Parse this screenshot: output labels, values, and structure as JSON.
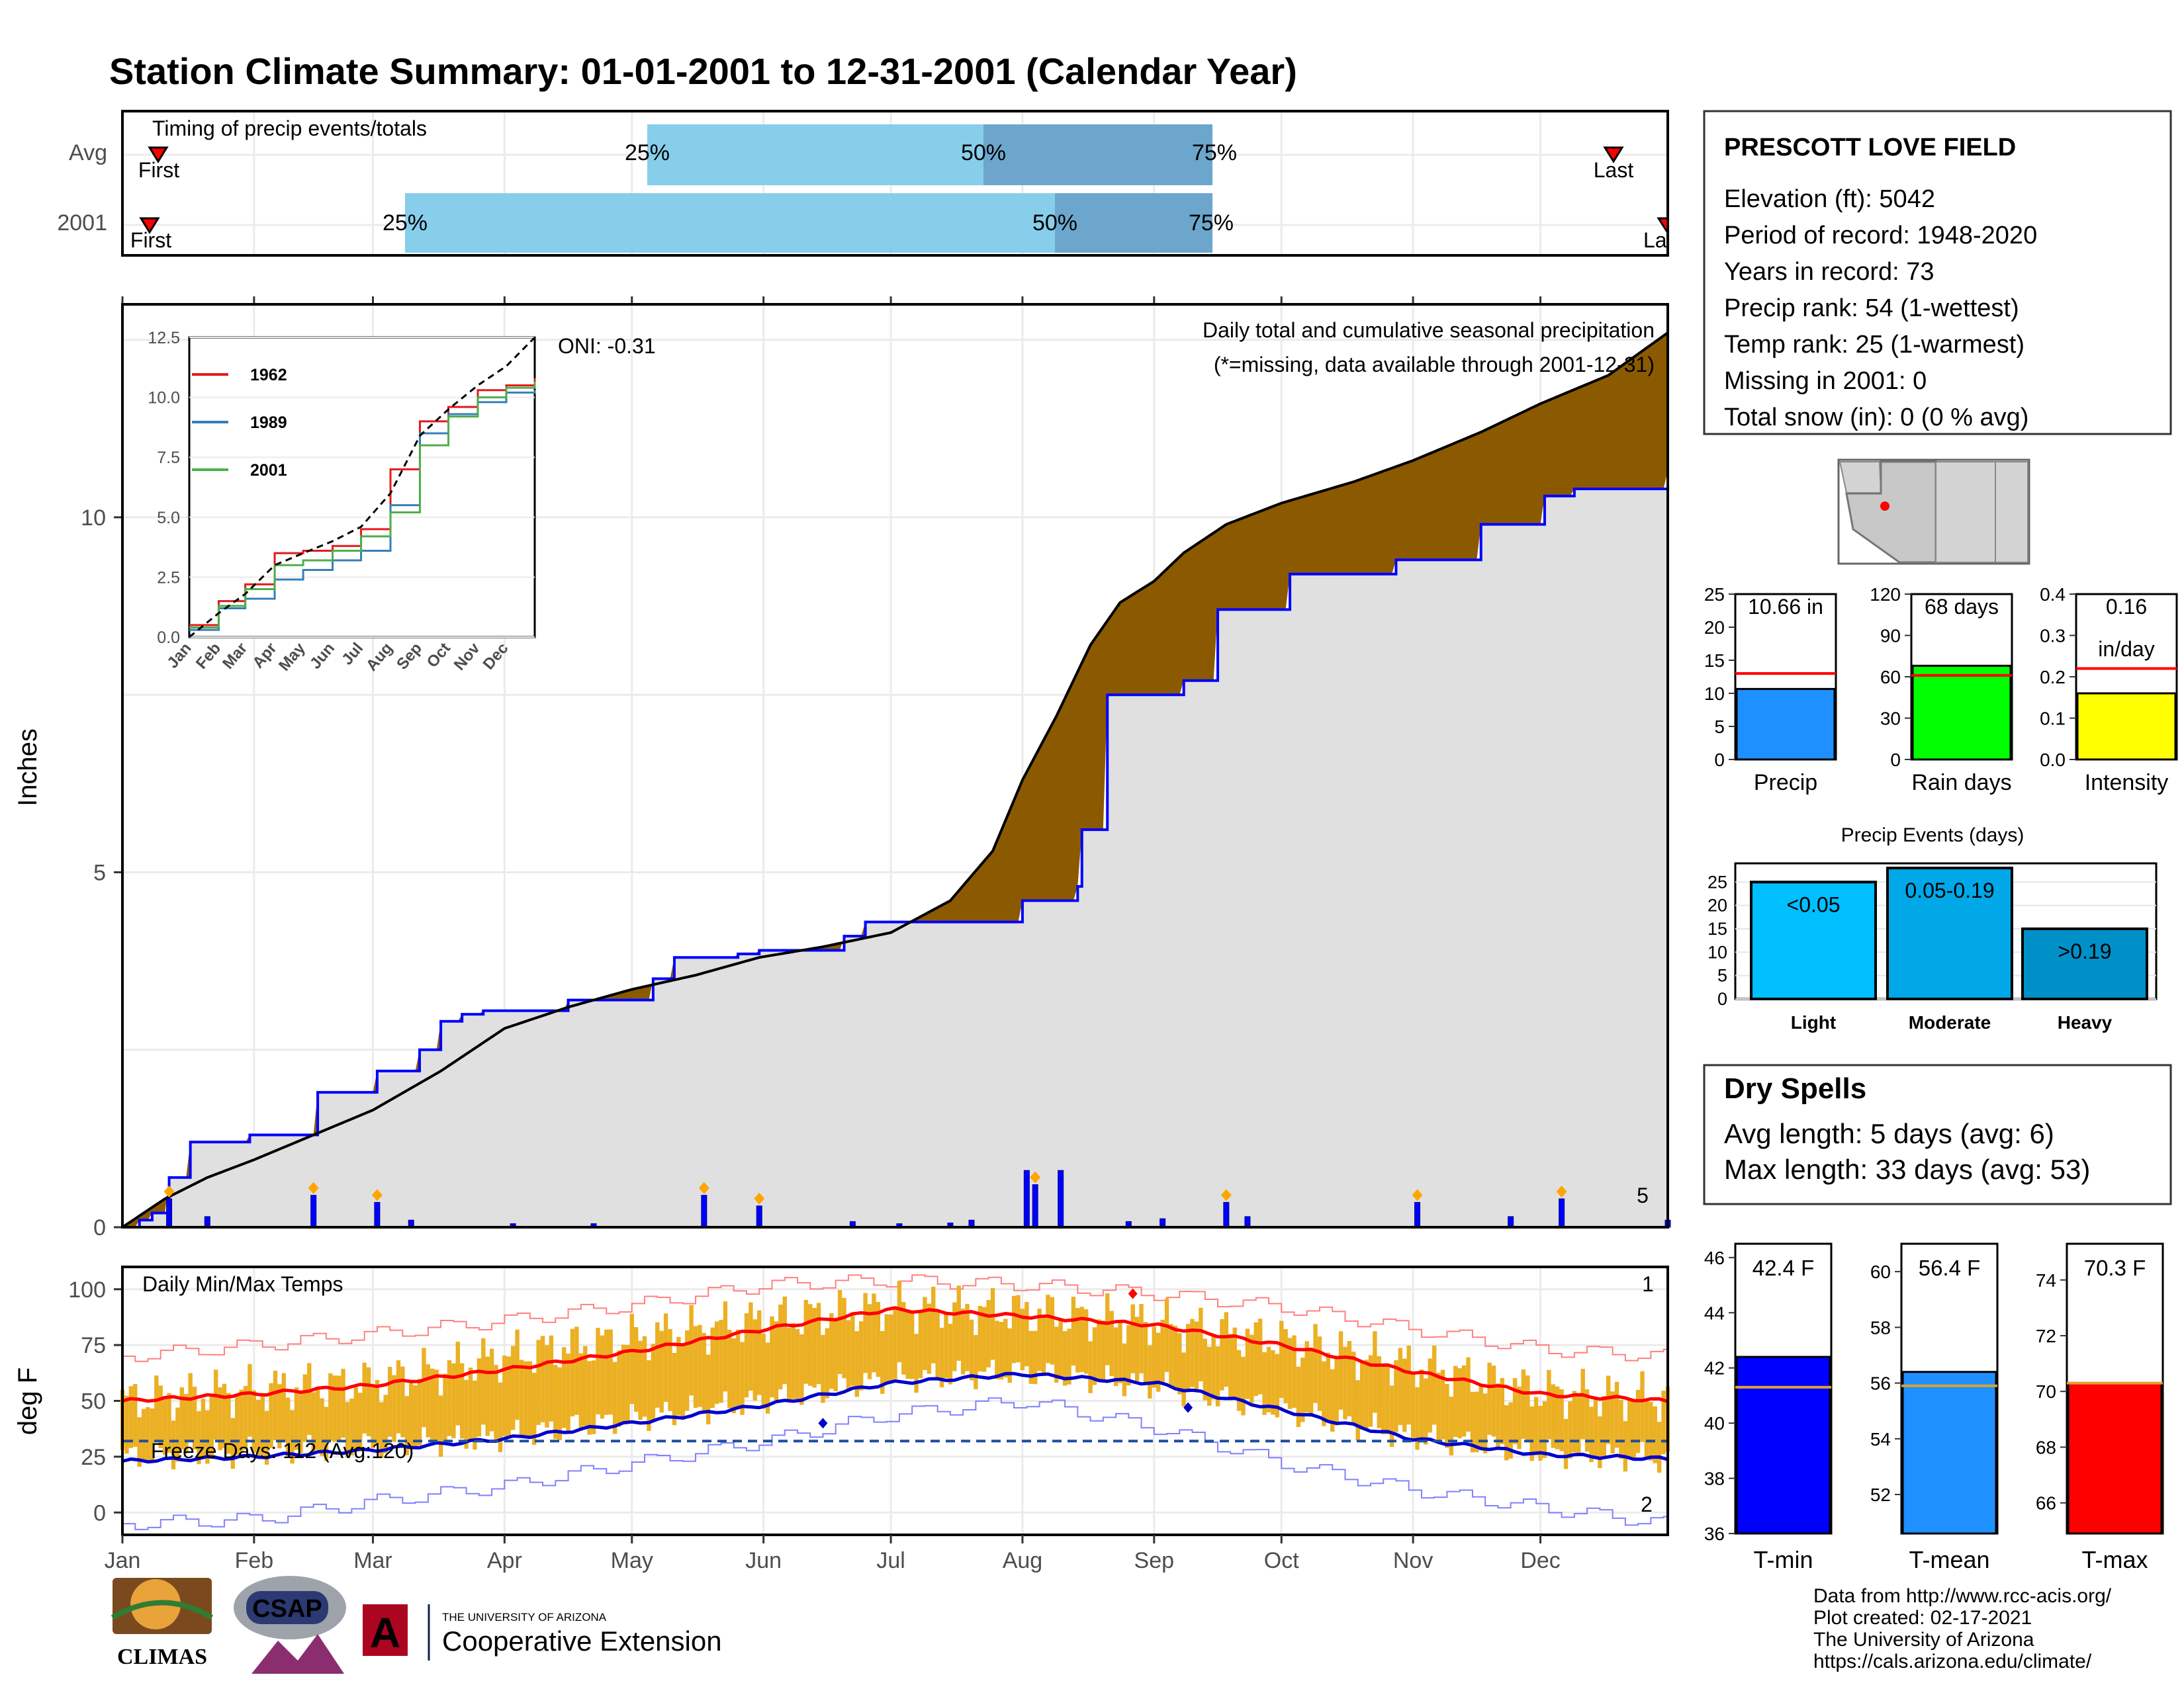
{
  "title": "Station Climate Summary: 01-01-2001 to 12-31-2001 (Calendar Year)",
  "colors": {
    "title": "#000080",
    "cum_2001": "#8B5A00",
    "cum_green": "#008000",
    "avg_line": "#0000FF",
    "area": "#E0E0E0",
    "bars": "#0000FF",
    "temp_bars": "#EBB023",
    "t_high": "#FF0000",
    "t_low": "#0000CC",
    "light_blue": "#87CEEB",
    "mid_blue": "#6CA6CD",
    "dry_spells": "#A52A2A"
  },
  "timing": {
    "title": "Timing of precip events/totals",
    "rows": [
      {
        "label": "Avg",
        "first": "First",
        "last": "Last",
        "q25": "25%",
        "q50": "50%",
        "q75": "75%"
      },
      {
        "label": "2001",
        "first": "First",
        "last": "La",
        "q25": "25%",
        "q50": "50%",
        "q75": "75%"
      }
    ]
  },
  "precip_panel": {
    "ylabel": "Inches",
    "note_title": "Daily total and cumulative seasonal precipitation",
    "note_missing": "(*=missing, data available through 2001-12-31)",
    "oni": "ONI: -0.31",
    "event_count": "5"
  },
  "temp_panel": {
    "ylabel": "deg F",
    "title": "Daily Min/Max Temps",
    "freeze": "Freeze Days: 112 (Avg:120)",
    "count_high": "1",
    "count_low": "2"
  },
  "station": {
    "name": "PRESCOTT LOVE FIELD",
    "lines": [
      "Elevation (ft): 5042",
      "Period of record: 1948-2020",
      "Years in record: 73",
      "Precip rank: 54 (1-wettest)",
      "Temp rank: 25 (1-warmest)",
      "Missing in 2001: 0",
      "Total snow (in): 0 (0 % avg)"
    ]
  },
  "summary_bars": [
    {
      "name": "Precip",
      "value": 10.66,
      "avg": 13.0,
      "label": "10.66 in",
      "color": "#1E90FF",
      "ticks": [
        "0",
        "5",
        "10",
        "15",
        "20",
        "25"
      ],
      "max": 25
    },
    {
      "name": "Rain days",
      "value": 68,
      "avg": 61,
      "label": "68 days",
      "color": "#00FF00",
      "ticks": [
        "0",
        "30",
        "60",
        "90",
        "120"
      ],
      "max": 120
    },
    {
      "name": "Intensity",
      "value": 0.16,
      "avg": 0.22,
      "label": "0.16",
      "label2": "in/day",
      "color": "#FFFF00",
      "ticks": [
        "0.0",
        "0.1",
        "0.2",
        "0.3",
        "0.4"
      ],
      "max": 0.4
    }
  ],
  "precip_events": {
    "title": "Precip Events (days)",
    "categories": [
      "Light",
      "Moderate",
      "Heavy"
    ],
    "labels": [
      "<0.05",
      "0.05-0.19",
      ">0.19"
    ],
    "values": [
      25,
      28,
      15
    ],
    "colors": [
      "#00BFFF",
      "#00A8E8",
      "#0090C8"
    ],
    "ticks": [
      "0",
      "5",
      "10",
      "15",
      "20",
      "25"
    ]
  },
  "dry_spells": {
    "title": "Dry Spells",
    "avg": "Avg length: 5 days (avg: 6)",
    "max": "Max length: 33 days (avg: 53)"
  },
  "temp_bars": [
    {
      "name": "T-min",
      "value": 42.4,
      "avg": 41.3,
      "label": "42.4 F",
      "color": "#0000FF",
      "min": 36,
      "max": 46.5,
      "ticks": [
        "36",
        "38",
        "40",
        "42",
        "44",
        "46"
      ]
    },
    {
      "name": "T-mean",
      "value": 56.4,
      "avg": 55.9,
      "label": "56.4 F",
      "color": "#1E90FF",
      "min": 50.6,
      "max": 61,
      "ticks": [
        "52",
        "54",
        "56",
        "58",
        "60"
      ]
    },
    {
      "name": "T-max",
      "value": 70.3,
      "avg": 70.3,
      "label": "70.3 F",
      "color": "#FF0000",
      "min": 64.9,
      "max": 75.3,
      "ticks": [
        "66",
        "68",
        "70",
        "72",
        "74"
      ]
    }
  ],
  "credits": [
    "Data from http://www.rcc-acis.org/",
    "Plot created: 02-17-2021",
    "The University of Arizona",
    "https://cals.arizona.edu/climate/"
  ],
  "logos": {
    "climas": "CLIMAS",
    "csap": "CSAP",
    "ua_line1": "THE UNIVERSITY OF ARIZONA",
    "ua_line2": "Cooperative Extension"
  },
  "chart_data": [
    {
      "type": "line",
      "title": "Daily total and cumulative seasonal precipitation",
      "ylabel": "Inches",
      "xlabel": "",
      "ylim": [
        0,
        13
      ],
      "x_ticks": [
        "Jan",
        "Feb",
        "Mar",
        "Apr",
        "May",
        "Jun",
        "Jul",
        "Aug",
        "Sep",
        "Oct",
        "Nov",
        "Dec"
      ],
      "y_ticks": [
        0,
        5,
        10
      ],
      "series": [
        {
          "name": "cumulative average",
          "x": [
            0,
            10,
            20,
            31,
            45,
            59,
            75,
            90,
            105,
            120,
            135,
            150,
            165,
            181,
            195,
            205,
            212,
            220,
            228,
            235,
            243,
            250,
            260,
            273,
            290,
            304,
            320,
            334,
            350,
            364
          ],
          "y": [
            0,
            0.4,
            0.7,
            0.95,
            1.3,
            1.65,
            2.2,
            2.8,
            3.1,
            3.35,
            3.55,
            3.8,
            3.95,
            4.15,
            4.6,
            5.3,
            6.3,
            7.2,
            8.2,
            8.8,
            9.1,
            9.5,
            9.9,
            10.2,
            10.5,
            10.8,
            11.2,
            11.6,
            12.0,
            12.6
          ]
        },
        {
          "name": "cumulative 2001",
          "x": [
            0,
            4,
            7,
            11,
            16,
            30,
            35,
            45,
            46,
            58,
            60,
            70,
            75,
            80,
            85,
            95,
            105,
            125,
            130,
            145,
            150,
            170,
            175,
            195,
            205,
            212,
            225,
            226,
            232,
            250,
            258,
            263,
            275,
            300,
            320,
            335,
            342,
            364
          ],
          "y": [
            0,
            0.1,
            0.2,
            0.7,
            1.2,
            1.3,
            1.3,
            1.3,
            1.9,
            1.9,
            2.2,
            2.5,
            2.9,
            3.0,
            3.05,
            3.05,
            3.2,
            3.5,
            3.8,
            3.85,
            3.9,
            4.1,
            4.3,
            4.3,
            4.3,
            4.6,
            4.8,
            5.6,
            7.5,
            7.7,
            8.7,
            8.7,
            9.2,
            9.4,
            9.9,
            10.3,
            10.4,
            10.66
          ]
        }
      ],
      "daily_precip": {
        "x": [
          11,
          20,
          45,
          60,
          68,
          92,
          111,
          137,
          150,
          172,
          183,
          195,
          200,
          213,
          215,
          221,
          237,
          245,
          260,
          265,
          305,
          327,
          339,
          364
        ],
        "y": [
          0.4,
          0.15,
          0.45,
          0.35,
          0.1,
          0.05,
          0.05,
          0.45,
          0.3,
          0.08,
          0.05,
          0.06,
          0.1,
          0.8,
          0.6,
          0.8,
          0.08,
          0.12,
          0.35,
          0.15,
          0.35,
          0.15,
          0.4,
          0.1
        ]
      }
    },
    {
      "type": "line",
      "title": "",
      "xlabel": "",
      "ylabel": "",
      "ylim": [
        0,
        12.5
      ],
      "y_ticks": [
        "0.0",
        "2.5",
        "5.0",
        "7.5",
        "10.0",
        "12.5"
      ],
      "x_ticks": [
        "Jan",
        "Feb",
        "Mar",
        "Apr",
        "May",
        "Jun",
        "Jul",
        "Aug",
        "Sep",
        "Oct",
        "Nov",
        "Dec"
      ],
      "series": [
        {
          "name": "1962",
          "x": [
            0,
            31,
            59,
            90,
            120,
            151,
            181,
            212,
            243,
            273,
            304,
            334,
            364
          ],
          "y": [
            0.5,
            1.5,
            2.2,
            3.5,
            3.6,
            3.8,
            4.5,
            7.0,
            9.0,
            9.6,
            10.3,
            10.5,
            10.8
          ]
        },
        {
          "name": "1989",
          "x": [
            0,
            31,
            59,
            90,
            120,
            151,
            181,
            212,
            243,
            273,
            304,
            334,
            364
          ],
          "y": [
            0.3,
            1.2,
            1.6,
            2.4,
            2.8,
            3.2,
            3.6,
            5.5,
            8.5,
            9.3,
            9.8,
            10.2,
            10.3
          ]
        },
        {
          "name": "2001",
          "x": [
            0,
            31,
            59,
            90,
            120,
            151,
            181,
            212,
            243,
            273,
            304,
            334,
            364
          ],
          "y": [
            0.4,
            1.3,
            2.0,
            3.0,
            3.2,
            3.6,
            4.2,
            5.2,
            8.0,
            9.2,
            10.0,
            10.4,
            10.66
          ]
        },
        {
          "name": "",
          "x": [
            0,
            31,
            59,
            90,
            120,
            151,
            181,
            212,
            243,
            273,
            304,
            334,
            364
          ],
          "y": [
            0,
            1.0,
            1.8,
            3.0,
            3.5,
            4.0,
            4.6,
            6.0,
            8.4,
            9.5,
            10.5,
            11.3,
            12.5
          ]
        }
      ]
    },
    {
      "type": "area",
      "title": "Daily Min/Max Temps",
      "ylabel": "deg F",
      "xlabel": "",
      "ylim": [
        -10,
        110
      ],
      "y_ticks": [
        0,
        25,
        50,
        75,
        100
      ],
      "x_ticks": [
        "Jan",
        "Feb",
        "Mar",
        "Apr",
        "May",
        "Jun",
        "Jul",
        "Aug",
        "Sep",
        "Oct",
        "Nov",
        "Dec"
      ],
      "freeze_line": 32,
      "series": [
        {
          "name": "avg max",
          "x": [
            0,
            31,
            59,
            90,
            120,
            151,
            181,
            212,
            243,
            273,
            304,
            334,
            364
          ],
          "y": [
            50,
            53,
            57,
            64,
            72,
            82,
            91,
            88,
            84,
            75,
            63,
            53,
            50
          ]
        },
        {
          "name": "avg min",
          "x": [
            0,
            31,
            59,
            90,
            120,
            151,
            181,
            212,
            243,
            273,
            304,
            334,
            364
          ],
          "y": [
            23,
            25,
            28,
            33,
            40,
            48,
            58,
            62,
            58,
            46,
            33,
            26,
            24
          ]
        },
        {
          "name": "record high",
          "x": [
            0,
            31,
            59,
            90,
            120,
            151,
            181,
            212,
            243,
            273,
            304,
            334,
            364
          ],
          "y": [
            70,
            75,
            80,
            86,
            93,
            102,
            104,
            102,
            98,
            92,
            82,
            73,
            70
          ]
        },
        {
          "name": "record low",
          "x": [
            0,
            31,
            59,
            90,
            120,
            151,
            181,
            212,
            243,
            273,
            304,
            334,
            364
          ],
          "y": [
            -5,
            -3,
            5,
            12,
            22,
            32,
            44,
            50,
            38,
            22,
            10,
            2,
            -5
          ]
        },
        {
          "name": "2001 max",
          "x": [
            0,
            31,
            59,
            90,
            120,
            151,
            181,
            212,
            243,
            273,
            304,
            334,
            364
          ],
          "y": [
            50,
            55,
            58,
            70,
            78,
            86,
            92,
            90,
            85,
            77,
            66,
            54,
            51
          ]
        },
        {
          "name": "2001 min",
          "x": [
            0,
            31,
            59,
            90,
            120,
            151,
            181,
            212,
            243,
            273,
            304,
            334,
            364
          ],
          "y": [
            25,
            27,
            30,
            34,
            42,
            50,
            60,
            63,
            57,
            46,
            34,
            27,
            24
          ]
        }
      ]
    }
  ]
}
